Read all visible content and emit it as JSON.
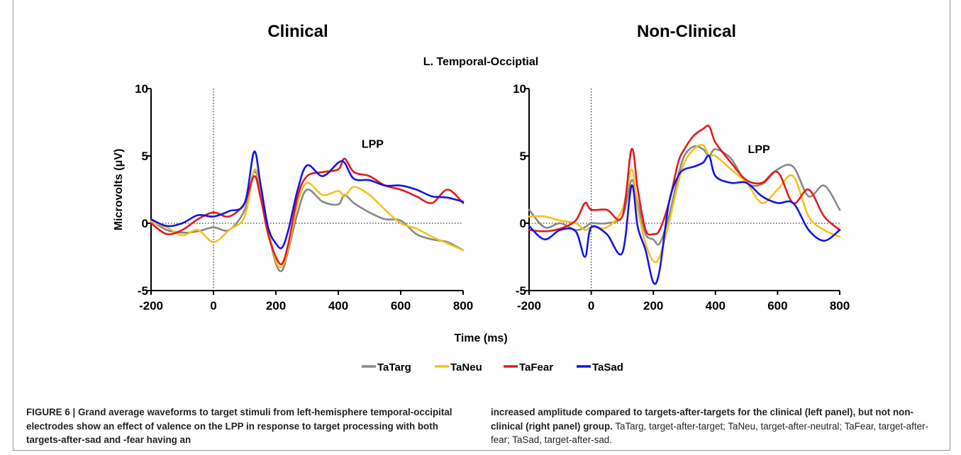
{
  "figure": {
    "group_title": "L. Temporal-Occiptial",
    "shared_xlabel": "Time (ms)",
    "caption": {
      "left_bold": "FIGURE 6 | Grand average waveforms to target stimuli from left-hemisphere temporal-occipital electrodes show an effect of valence on the LPP in response to target processing with both targets-after-sad and -fear having an",
      "right_bold": "increased amplitude compared to targets-after-targets for the clinical (left panel), but not non-clinical (right panel) group.",
      "right_plain": " TaTarg, target-after-target; TaNeu, target-after-neutral; TaFear, target-after-fear; TaSad, target-after-sad."
    }
  },
  "legend": {
    "items": [
      {
        "label": "TaTarg",
        "color": "#888888"
      },
      {
        "label": "TaNeu",
        "color": "#f2c21b"
      },
      {
        "label": "TaFear",
        "color": "#e31a1c"
      },
      {
        "label": "TaSad",
        "color": "#1414e6"
      }
    ]
  },
  "chart_data": [
    {
      "type": "line",
      "title": "Clinical",
      "xlabel": "Time (ms)",
      "ylabel": "Microvolts (μV)",
      "xlim": [
        -200,
        800
      ],
      "ylim": [
        -5,
        10
      ],
      "xticks": [
        "-200",
        "0",
        "200",
        "400",
        "600",
        "800"
      ],
      "yticks": [
        "-5",
        "0",
        "5",
        "10"
      ],
      "annotation": "LPP",
      "x": [
        -200,
        -150,
        -100,
        -50,
        0,
        50,
        100,
        130,
        150,
        175,
        200,
        220,
        240,
        270,
        300,
        350,
        400,
        420,
        450,
        500,
        550,
        600,
        650,
        700,
        750,
        800
      ],
      "series": [
        {
          "name": "TaTarg",
          "color": "#888888",
          "values": [
            0.2,
            -0.5,
            -0.7,
            -0.6,
            -0.3,
            -0.5,
            1.0,
            3.8,
            2.5,
            -0.5,
            -3.0,
            -3.5,
            -2.0,
            0.8,
            2.5,
            1.6,
            1.4,
            2.1,
            1.5,
            0.8,
            0.3,
            0.2,
            -0.8,
            -1.2,
            -1.4,
            -2.0
          ]
        },
        {
          "name": "TaNeu",
          "color": "#f2c21b",
          "values": [
            0.1,
            -0.3,
            -0.9,
            -0.5,
            -1.4,
            -0.5,
            0.5,
            3.9,
            2.8,
            -0.3,
            -2.8,
            -3.2,
            -1.8,
            1.5,
            3.0,
            2.1,
            2.4,
            2.0,
            2.7,
            2.1,
            1.0,
            0.0,
            -0.4,
            -1.0,
            -1.5,
            -2.0
          ]
        },
        {
          "name": "TaFear",
          "color": "#e31a1c",
          "values": [
            0.0,
            -0.8,
            -0.5,
            0.3,
            0.8,
            0.5,
            1.5,
            3.5,
            2.0,
            -0.8,
            -2.5,
            -3.0,
            -1.5,
            2.0,
            3.5,
            3.8,
            4.0,
            4.8,
            3.8,
            3.5,
            2.8,
            2.5,
            2.0,
            1.5,
            2.5,
            1.5
          ]
        },
        {
          "name": "TaSad",
          "color": "#1414e6",
          "values": [
            0.3,
            -0.2,
            0.0,
            0.6,
            0.5,
            0.9,
            1.5,
            5.3,
            3.0,
            -0.3,
            -1.5,
            -1.8,
            -0.5,
            2.5,
            4.3,
            3.5,
            4.5,
            4.5,
            3.3,
            3.2,
            2.8,
            2.8,
            2.5,
            2.0,
            1.9,
            1.6
          ]
        }
      ]
    },
    {
      "type": "line",
      "title": "Non-Clinical",
      "xlabel": "Time (ms)",
      "ylabel": "",
      "xlim": [
        -200,
        800
      ],
      "ylim": [
        -5,
        10
      ],
      "xticks": [
        "-200",
        "0",
        "200",
        "400",
        "600",
        "800"
      ],
      "yticks": [
        "-5",
        "0",
        "5",
        "10"
      ],
      "annotation": "LPP",
      "x": [
        -200,
        -150,
        -100,
        -50,
        -20,
        0,
        50,
        100,
        130,
        150,
        175,
        200,
        220,
        250,
        280,
        300,
        330,
        360,
        380,
        400,
        450,
        500,
        550,
        600,
        650,
        700,
        750,
        800
      ],
      "series": [
        {
          "name": "TaTarg",
          "color": "#888888",
          "values": [
            1.0,
            -0.3,
            0.0,
            -0.5,
            -0.3,
            0.0,
            0.0,
            0.5,
            3.2,
            1.5,
            -0.8,
            -1.2,
            -1.5,
            0.5,
            3.5,
            5.0,
            5.7,
            5.5,
            5.0,
            5.5,
            4.8,
            3.0,
            2.9,
            4.0,
            4.2,
            2.0,
            2.8,
            1.0
          ]
        },
        {
          "name": "TaNeu",
          "color": "#f2c21b",
          "values": [
            0.5,
            0.5,
            0.2,
            0.0,
            -0.5,
            -0.3,
            -0.3,
            1.0,
            4.0,
            1.0,
            -1.5,
            -2.8,
            -2.5,
            0.0,
            3.0,
            4.5,
            5.5,
            5.8,
            5.0,
            5.0,
            4.0,
            3.0,
            1.5,
            2.5,
            3.5,
            0.5,
            -0.5,
            -1.0
          ]
        },
        {
          "name": "TaFear",
          "color": "#e31a1c",
          "values": [
            -0.5,
            -0.6,
            -0.4,
            0.2,
            1.5,
            1.0,
            1.0,
            0.5,
            5.5,
            2.5,
            -0.5,
            -0.8,
            -0.5,
            1.5,
            4.5,
            5.5,
            6.5,
            7.0,
            7.2,
            6.0,
            4.5,
            3.2,
            3.0,
            3.8,
            1.5,
            2.5,
            0.5,
            -0.5
          ]
        },
        {
          "name": "TaSad",
          "color": "#1414e6",
          "values": [
            -0.2,
            -1.2,
            -0.5,
            -0.6,
            -2.5,
            -0.3,
            -0.8,
            -2.2,
            2.8,
            -0.3,
            -2.0,
            -4.4,
            -3.5,
            1.5,
            3.5,
            4.0,
            4.2,
            4.5,
            5.0,
            3.5,
            3.0,
            3.0,
            2.0,
            1.5,
            1.5,
            -0.5,
            -1.3,
            -0.5
          ]
        }
      ]
    }
  ]
}
